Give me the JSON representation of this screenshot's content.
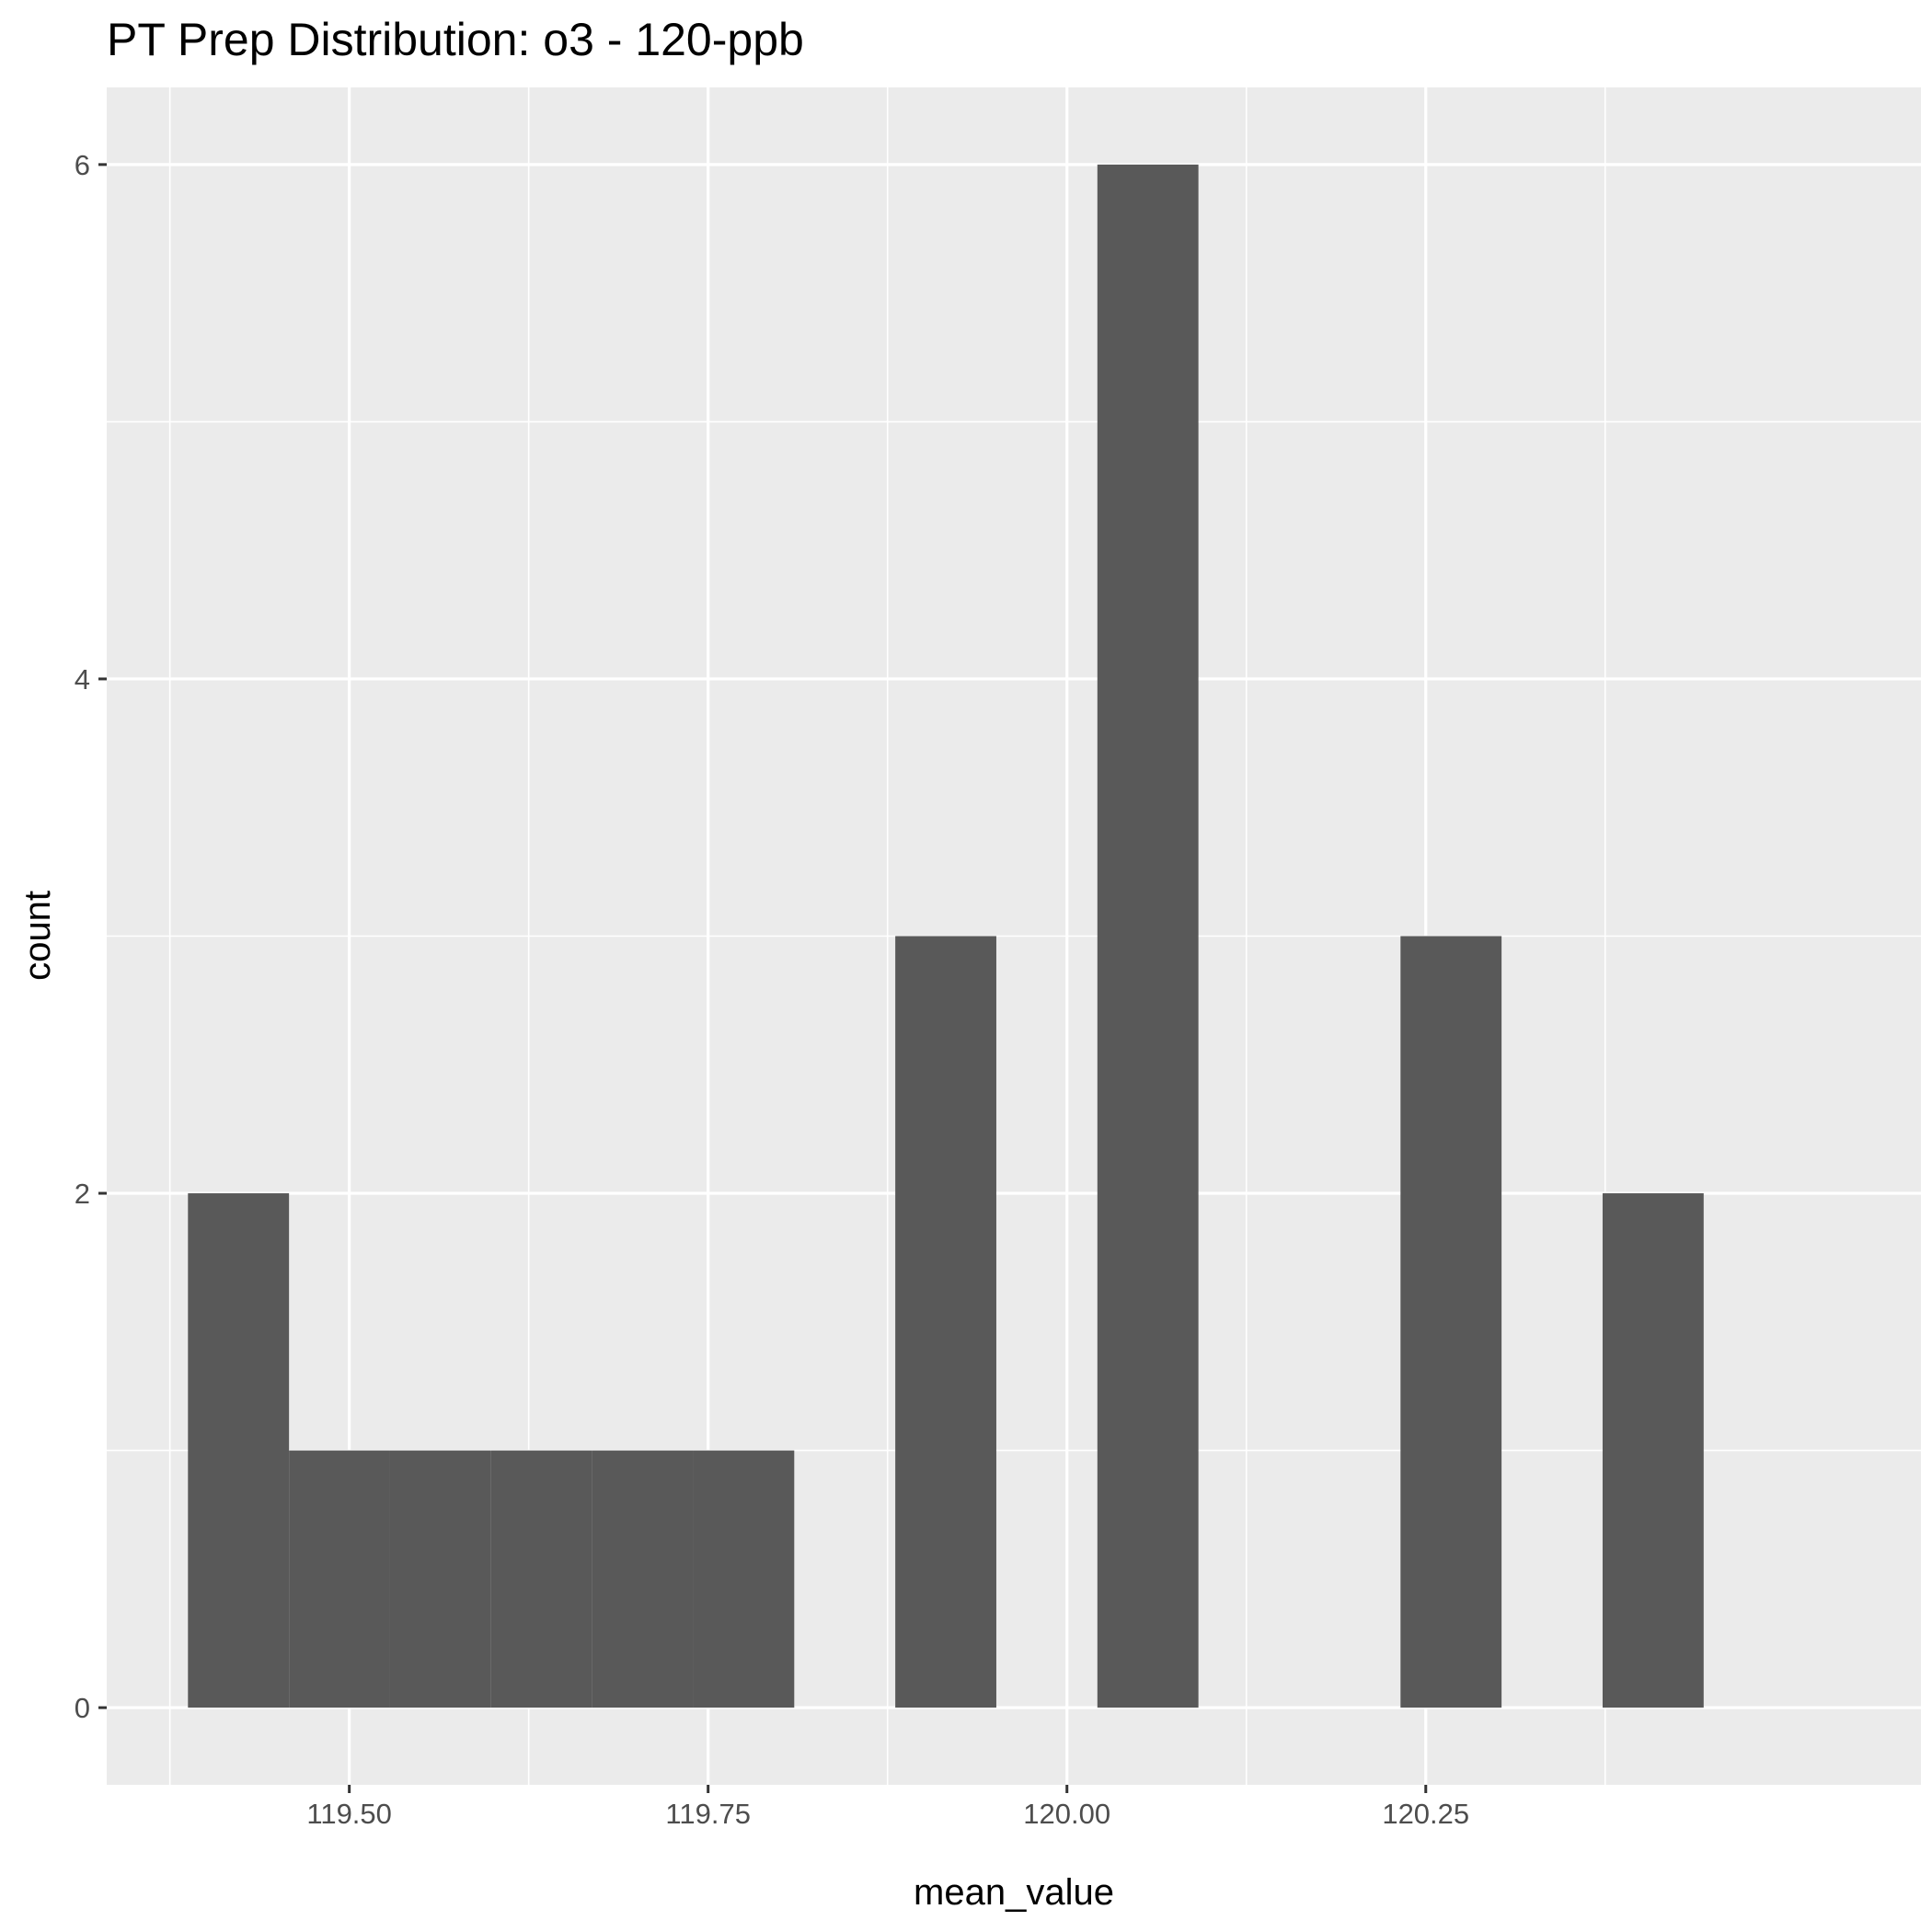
{
  "chart_data": {
    "type": "bar",
    "title": "PT Prep Distribution: o3 - 120-ppb",
    "xlabel": "mean_value",
    "ylabel": "count",
    "xlim": [
      119.331,
      120.595
    ],
    "ylim": [
      -0.3,
      6.3
    ],
    "x_ticks": [
      119.5,
      119.75,
      120.0,
      120.25
    ],
    "x_tick_labels": [
      "119.50",
      "119.75",
      "120.00",
      "120.25"
    ],
    "y_ticks": [
      0,
      2,
      4,
      6
    ],
    "y_tick_labels": [
      "0",
      "2",
      "4",
      "6"
    ],
    "bin_width": 0.0704,
    "bins": [
      {
        "x": 119.4228,
        "count": 2
      },
      {
        "x": 119.4932,
        "count": 1
      },
      {
        "x": 119.5636,
        "count": 1
      },
      {
        "x": 119.634,
        "count": 1
      },
      {
        "x": 119.7044,
        "count": 1
      },
      {
        "x": 119.7748,
        "count": 1
      },
      {
        "x": 119.8452,
        "count": 0
      },
      {
        "x": 119.9156,
        "count": 3
      },
      {
        "x": 119.986,
        "count": 0
      },
      {
        "x": 120.0564,
        "count": 6
      },
      {
        "x": 120.1268,
        "count": 0
      },
      {
        "x": 120.1972,
        "count": 0
      },
      {
        "x": 120.2676,
        "count": 3
      },
      {
        "x": 120.338,
        "count": 0
      },
      {
        "x": 120.4084,
        "count": 2
      }
    ],
    "grid": true,
    "colors": {
      "bar": "#595959",
      "panel": "#ebebeb",
      "grid": "#ffffff"
    }
  }
}
